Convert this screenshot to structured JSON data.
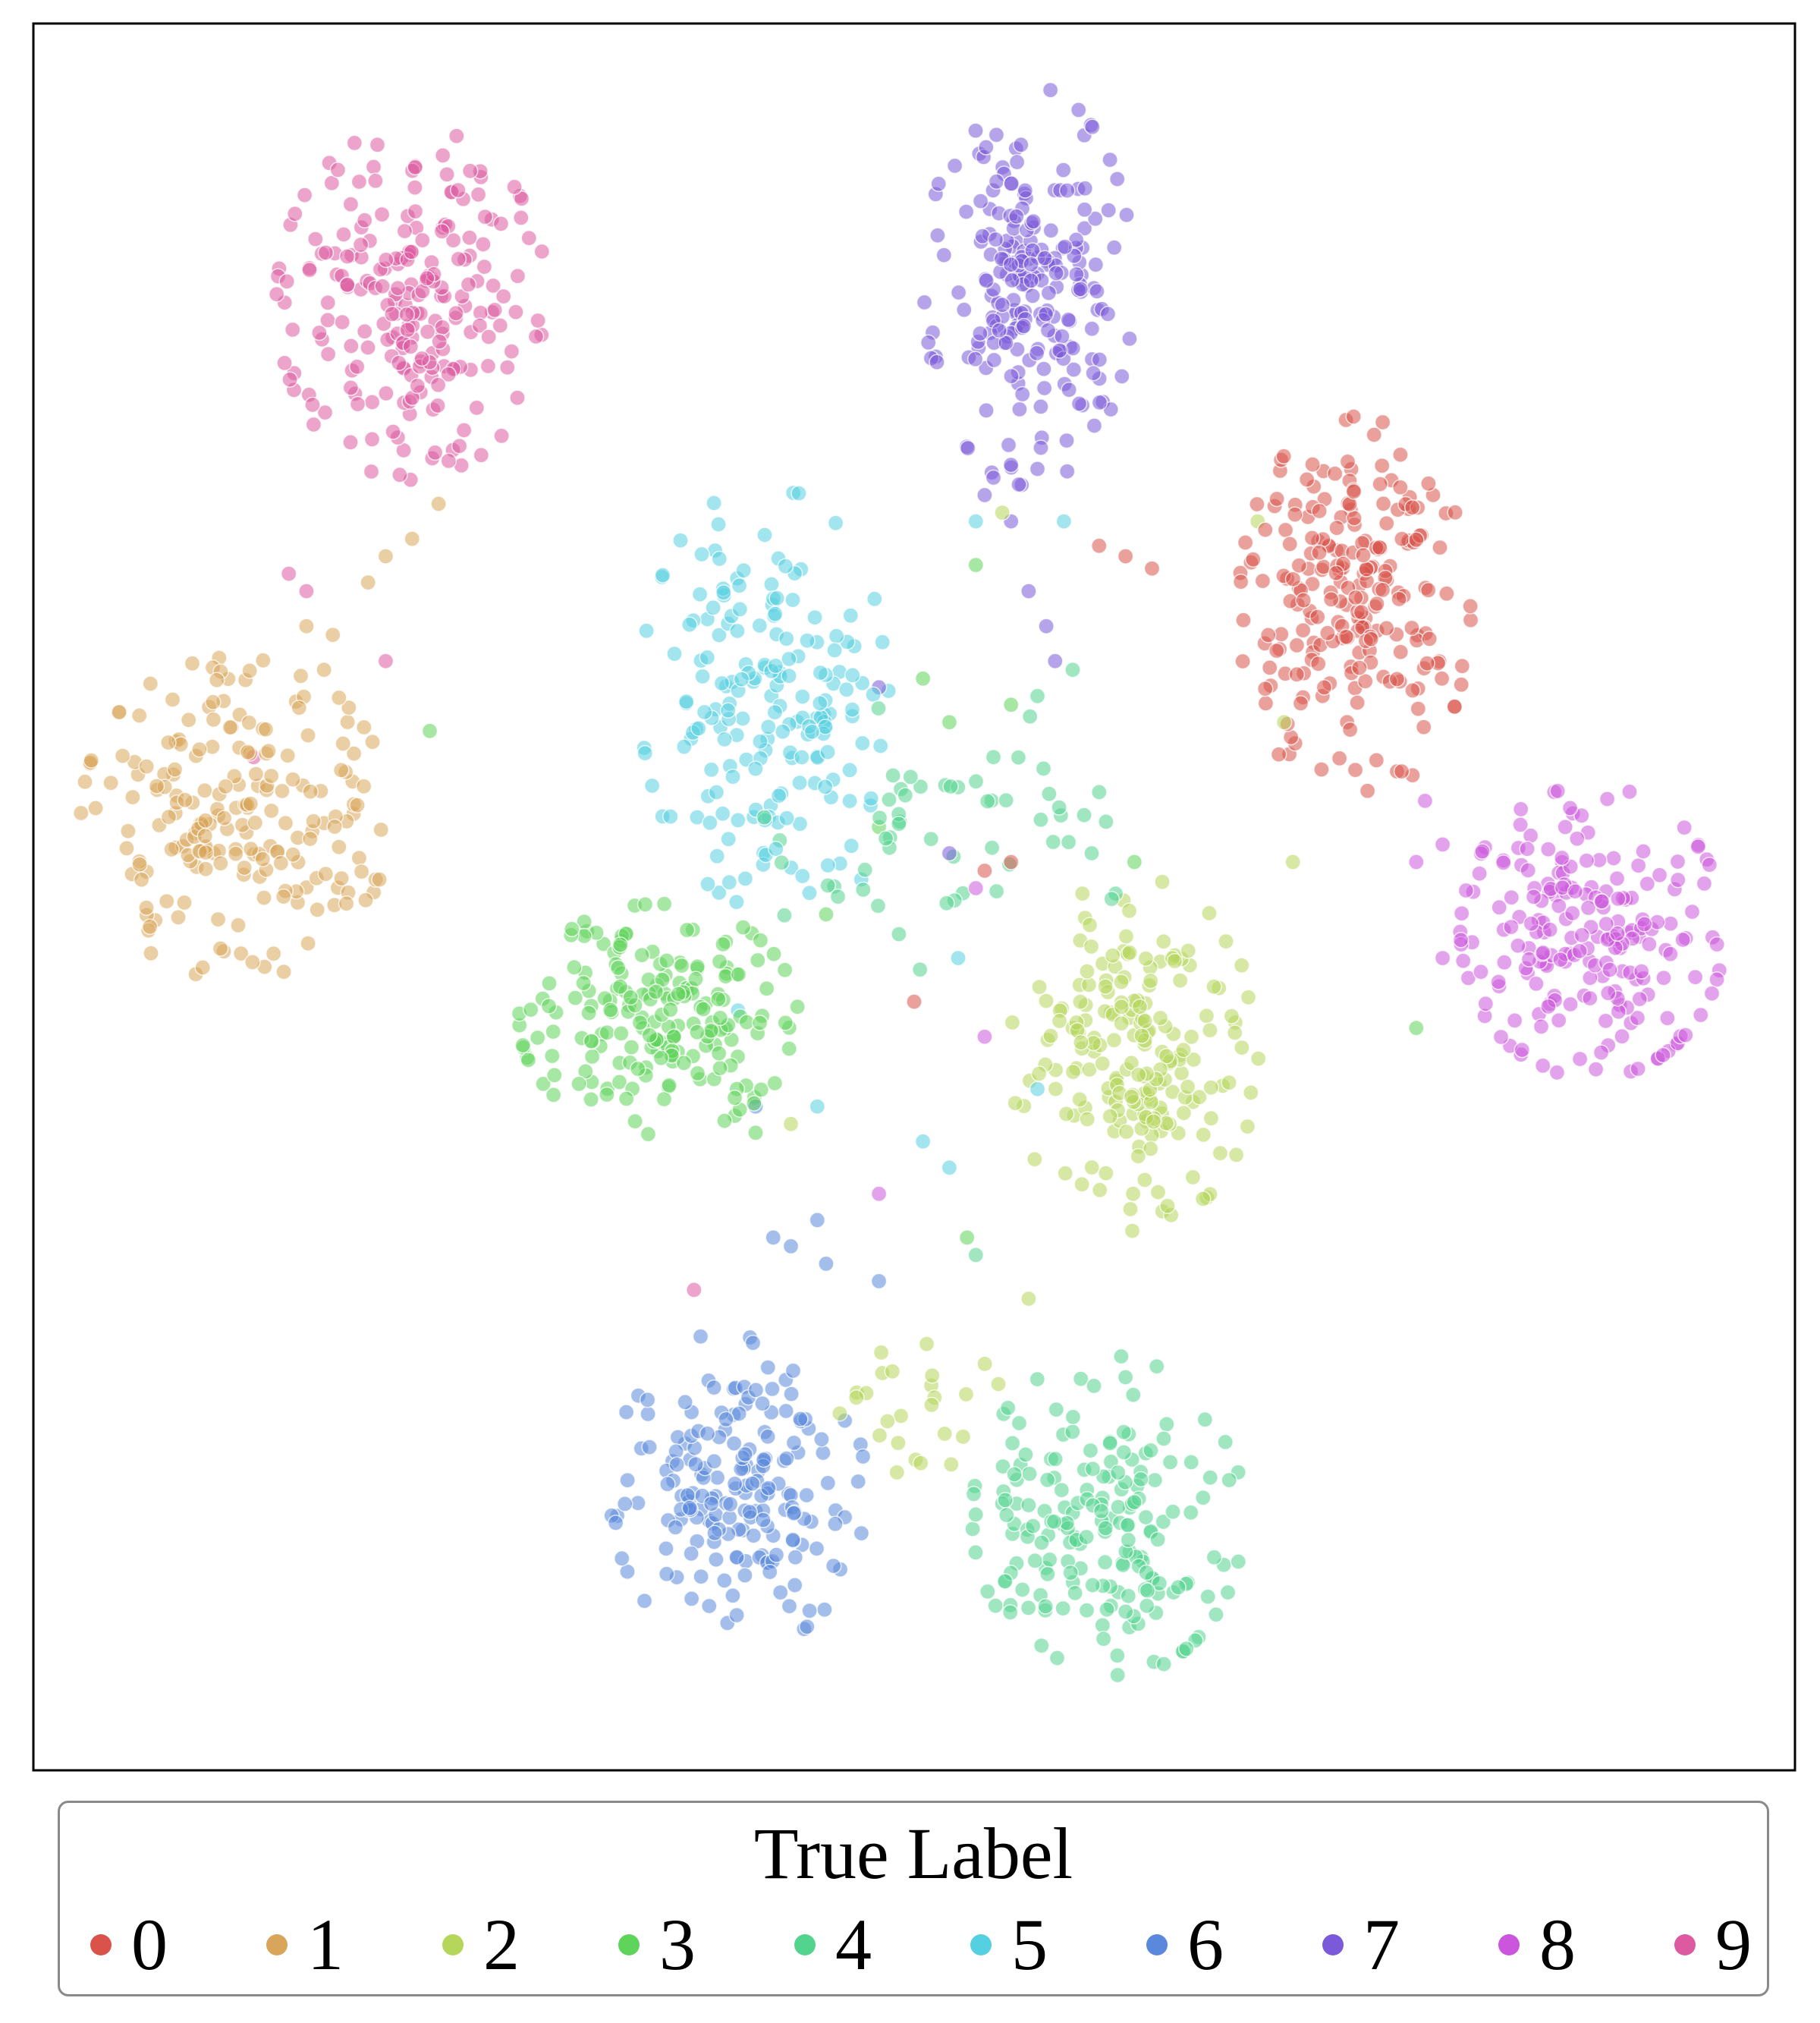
{
  "chart_data": {
    "type": "scatter",
    "title": "",
    "xlabel": "",
    "ylabel": "",
    "axes_ticks": false,
    "grid": false,
    "xlim": [
      0,
      100
    ],
    "ylim": [
      0,
      100
    ],
    "legend": {
      "title": "True Label",
      "placement": "bottom"
    },
    "series": [
      {
        "name": "0",
        "color": "#d9534a",
        "clusters": [
          {
            "cx": 75.0,
            "cy": 66.5,
            "sx": 3.0,
            "sy": 5.0,
            "n": 230
          }
        ],
        "outliers": [
          [
            60.5,
            70.1
          ],
          [
            62.0,
            69.5
          ],
          [
            63.5,
            68.8
          ],
          [
            55.5,
            52.0
          ],
          [
            54.0,
            51.5
          ],
          [
            50.0,
            44.0
          ]
        ]
      },
      {
        "name": "1",
        "color": "#d9a55a",
        "clusters": [
          {
            "cx": 11.5,
            "cy": 54.5,
            "sx": 4.0,
            "sy": 4.2,
            "n": 210
          }
        ],
        "outliers": [
          [
            19.0,
            68.0
          ],
          [
            20.0,
            69.5
          ],
          [
            21.5,
            70.5
          ],
          [
            17.0,
            65.0
          ],
          [
            16.5,
            63.0
          ],
          [
            23.0,
            72.5
          ],
          [
            15.5,
            65.5
          ]
        ]
      },
      {
        "name": "2",
        "color": "#b5d65a",
        "clusters": [
          {
            "cx": 62.5,
            "cy": 41.0,
            "sx": 3.2,
            "sy": 4.6,
            "n": 200
          },
          {
            "cx": 49.5,
            "cy": 21.0,
            "sx": 2.5,
            "sy": 1.8,
            "n": 25
          }
        ],
        "outliers": [
          [
            69.5,
            71.5
          ],
          [
            71.0,
            60.0
          ],
          [
            55.0,
            72.0
          ],
          [
            59.0,
            42.5
          ],
          [
            56.5,
            27.0
          ],
          [
            71.5,
            52.0
          ],
          [
            43.0,
            37.0
          ]
        ]
      },
      {
        "name": "3",
        "color": "#5fd45a",
        "clusters": [
          {
            "cx": 35.5,
            "cy": 43.0,
            "sx": 3.6,
            "sy": 3.0,
            "n": 200
          }
        ],
        "outliers": [
          [
            53.5,
            69.0
          ],
          [
            50.5,
            62.5
          ],
          [
            52.0,
            60.0
          ],
          [
            55.5,
            61.0
          ],
          [
            48.0,
            54.0
          ],
          [
            45.0,
            49.0
          ],
          [
            41.0,
            36.5
          ],
          [
            78.5,
            42.5
          ],
          [
            53.0,
            30.5
          ],
          [
            22.5,
            59.5
          ],
          [
            62.5,
            52.0
          ]
        ]
      },
      {
        "name": "4",
        "color": "#52d48e",
        "clusters": [
          {
            "cx": 61.0,
            "cy": 14.5,
            "sx": 3.5,
            "sy": 4.2,
            "n": 190
          },
          {
            "cx": 51.5,
            "cy": 53.5,
            "sx": 5.0,
            "sy": 3.5,
            "n": 55
          }
        ],
        "outliers": [
          [
            59.0,
            63.0
          ],
          [
            57.0,
            61.5
          ],
          [
            60.5,
            56.0
          ],
          [
            54.5,
            58.0
          ],
          [
            53.5,
            29.5
          ],
          [
            62.0,
            22.5
          ]
        ]
      },
      {
        "name": "5",
        "color": "#55d0e0",
        "clusters": [
          {
            "cx": 41.5,
            "cy": 61.5,
            "sx": 3.2,
            "sy": 5.5,
            "n": 190
          }
        ],
        "outliers": [
          [
            47.0,
            51.0
          ],
          [
            52.5,
            46.5
          ],
          [
            44.5,
            38.0
          ],
          [
            52.0,
            34.5
          ],
          [
            50.5,
            36.0
          ],
          [
            57.0,
            39.0
          ],
          [
            40.0,
            43.5
          ],
          [
            53.5,
            71.5
          ],
          [
            58.5,
            71.5
          ]
        ]
      },
      {
        "name": "6",
        "color": "#5a88dc",
        "clusters": [
          {
            "cx": 40.0,
            "cy": 16.0,
            "sx": 3.3,
            "sy": 4.2,
            "n": 190
          }
        ],
        "outliers": [
          [
            43.0,
            30.0
          ],
          [
            44.5,
            31.5
          ],
          [
            42.0,
            30.5
          ],
          [
            45.0,
            29.0
          ],
          [
            41.0,
            38.0
          ],
          [
            48.0,
            28.0
          ]
        ]
      },
      {
        "name": "7",
        "color": "#7a5ad9",
        "clusters": [
          {
            "cx": 56.5,
            "cy": 85.0,
            "sx": 2.7,
            "sy": 5.2,
            "n": 220
          }
        ],
        "outliers": [
          [
            54.0,
            73.0
          ],
          [
            55.5,
            71.5
          ],
          [
            56.5,
            67.5
          ],
          [
            57.5,
            65.5
          ],
          [
            58.0,
            63.5
          ],
          [
            48.0,
            62.0
          ],
          [
            52.0,
            52.5
          ],
          [
            57.0,
            74.5
          ],
          [
            54.5,
            74.0
          ]
        ]
      },
      {
        "name": "8",
        "color": "#cc55dd",
        "clusters": [
          {
            "cx": 88.5,
            "cy": 48.0,
            "sx": 3.4,
            "sy": 3.8,
            "n": 210
          }
        ],
        "outliers": [
          [
            79.0,
            55.5
          ],
          [
            80.0,
            53.0
          ],
          [
            78.5,
            52.0
          ],
          [
            81.0,
            48.0
          ],
          [
            80.0,
            46.5
          ],
          [
            48.0,
            33.0
          ],
          [
            54.0,
            42.0
          ],
          [
            53.5,
            50.5
          ]
        ]
      },
      {
        "name": "9",
        "color": "#dd5aa0",
        "clusters": [
          {
            "cx": 21.5,
            "cy": 84.0,
            "sx": 3.5,
            "sy": 4.6,
            "n": 230
          }
        ],
        "outliers": [
          [
            15.5,
            67.5
          ],
          [
            20.0,
            63.5
          ],
          [
            14.5,
            68.5
          ],
          [
            37.5,
            27.5
          ],
          [
            12.5,
            58.0
          ]
        ]
      }
    ]
  },
  "legend": {
    "title": "True Label",
    "entries": [
      {
        "label": "0",
        "color": "#d9534a"
      },
      {
        "label": "1",
        "color": "#d9a55a"
      },
      {
        "label": "2",
        "color": "#b5d65a"
      },
      {
        "label": "3",
        "color": "#5fd45a"
      },
      {
        "label": "4",
        "color": "#52d48e"
      },
      {
        "label": "5",
        "color": "#55d0e0"
      },
      {
        "label": "6",
        "color": "#5a88dc"
      },
      {
        "label": "7",
        "color": "#7a5ad9"
      },
      {
        "label": "8",
        "color": "#cc55dd"
      },
      {
        "label": "9",
        "color": "#dd5aa0"
      }
    ]
  }
}
